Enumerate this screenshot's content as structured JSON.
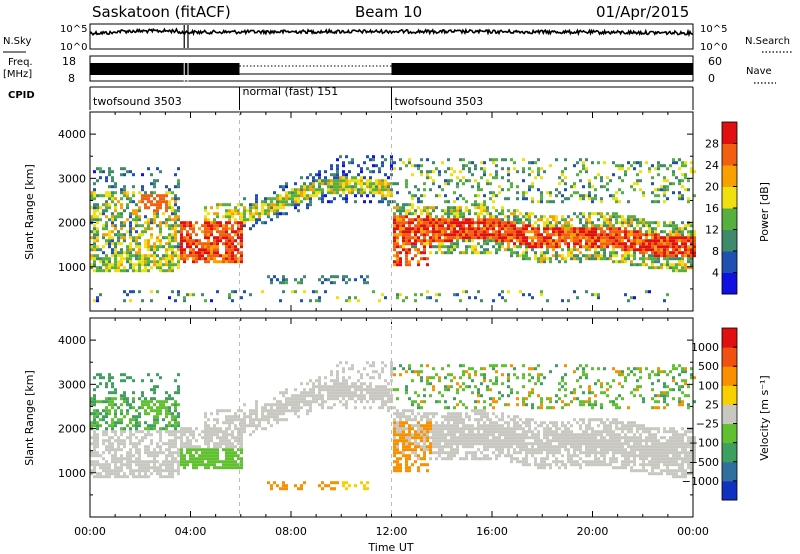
{
  "header": {
    "title": "Saskatoon (fitACF)",
    "beam": "Beam 10",
    "date": "01/Apr/2015"
  },
  "status_panels": {
    "nsky_label": "N.Sky",
    "nsearch_label": "N.Search",
    "noise_ticks": [
      "10^5",
      "10^0"
    ],
    "freq_label_1": "Freq.",
    "freq_label_2": "[MHz]",
    "freq_ticks": [
      "18",
      "8"
    ],
    "nave_label": "Nave",
    "nave_ticks": [
      "60",
      "0"
    ],
    "cpid_label": "CPID",
    "cpid_segments": [
      {
        "label": "twofsound 3503",
        "start_hour": 0.0,
        "end_hour": 5.95
      },
      {
        "label": "normal (fast) 151",
        "start_hour": 5.95,
        "end_hour": 12.0
      },
      {
        "label": "twofsound 3503",
        "start_hour": 12.0,
        "end_hour": 24.0
      }
    ]
  },
  "chart_data": [
    {
      "type": "heatmap",
      "panel": "power",
      "ylabel": "Slant Range [km]",
      "ylim": [
        0,
        4500
      ],
      "y_ticks": [
        "1000",
        "2000",
        "3000",
        "4000"
      ],
      "xlim": [
        0,
        24
      ],
      "x_ticks": [
        "00:00",
        "04:00",
        "08:00",
        "12:00",
        "16:00",
        "20:00",
        "00:00"
      ],
      "colorbar": {
        "label": "Power [dB]",
        "ticks": [
          "4",
          "8",
          "12",
          "16",
          "20",
          "24",
          "28"
        ],
        "colors": [
          "#1010e0",
          "#2050b0",
          "#3f8a6a",
          "#55b040",
          "#f0e010",
          "#f8a000",
          "#f06010",
          "#e01010"
        ]
      },
      "bands": [
        {
          "name": "low",
          "range_km": [
            850,
            1250
          ],
          "hours": [
            0.4,
            3.6
          ],
          "level": 0.5
        },
        {
          "name": "main_early",
          "range_km": [
            1250,
            2600
          ],
          "hours": [
            0.2,
            3.3
          ],
          "level": 0.55
        },
        {
          "name": "arc",
          "range_km": [
            1800,
            2800
          ],
          "hours": [
            5.0,
            11.5
          ],
          "level": 0.5
        },
        {
          "name": "main_late",
          "range_km": [
            1000,
            2500
          ],
          "hours": [
            12.0,
            24.0
          ],
          "level": 0.8
        }
      ]
    },
    {
      "type": "heatmap",
      "panel": "velocity",
      "ylabel": "Slant Range [km]",
      "ylim": [
        0,
        4500
      ],
      "y_ticks": [
        "1000",
        "2000",
        "3000",
        "4000"
      ],
      "xlim": [
        0,
        24
      ],
      "x_ticks": [
        "00:00",
        "04:00",
        "08:00",
        "12:00",
        "16:00",
        "20:00",
        "00:00"
      ],
      "xlabel": "Time UT",
      "colorbar": {
        "label": "Velocity [m s⁻¹]",
        "ticks": [
          "1000",
          "500",
          "100",
          "25",
          "−25",
          "−100",
          "−500",
          "−1000"
        ],
        "colors": [
          "#1030c0",
          "#2f70a0",
          "#3f9f60",
          "#60c030",
          "#c8c8c0",
          "#f8d000",
          "#f89000",
          "#f05010",
          "#e01010"
        ]
      }
    }
  ]
}
